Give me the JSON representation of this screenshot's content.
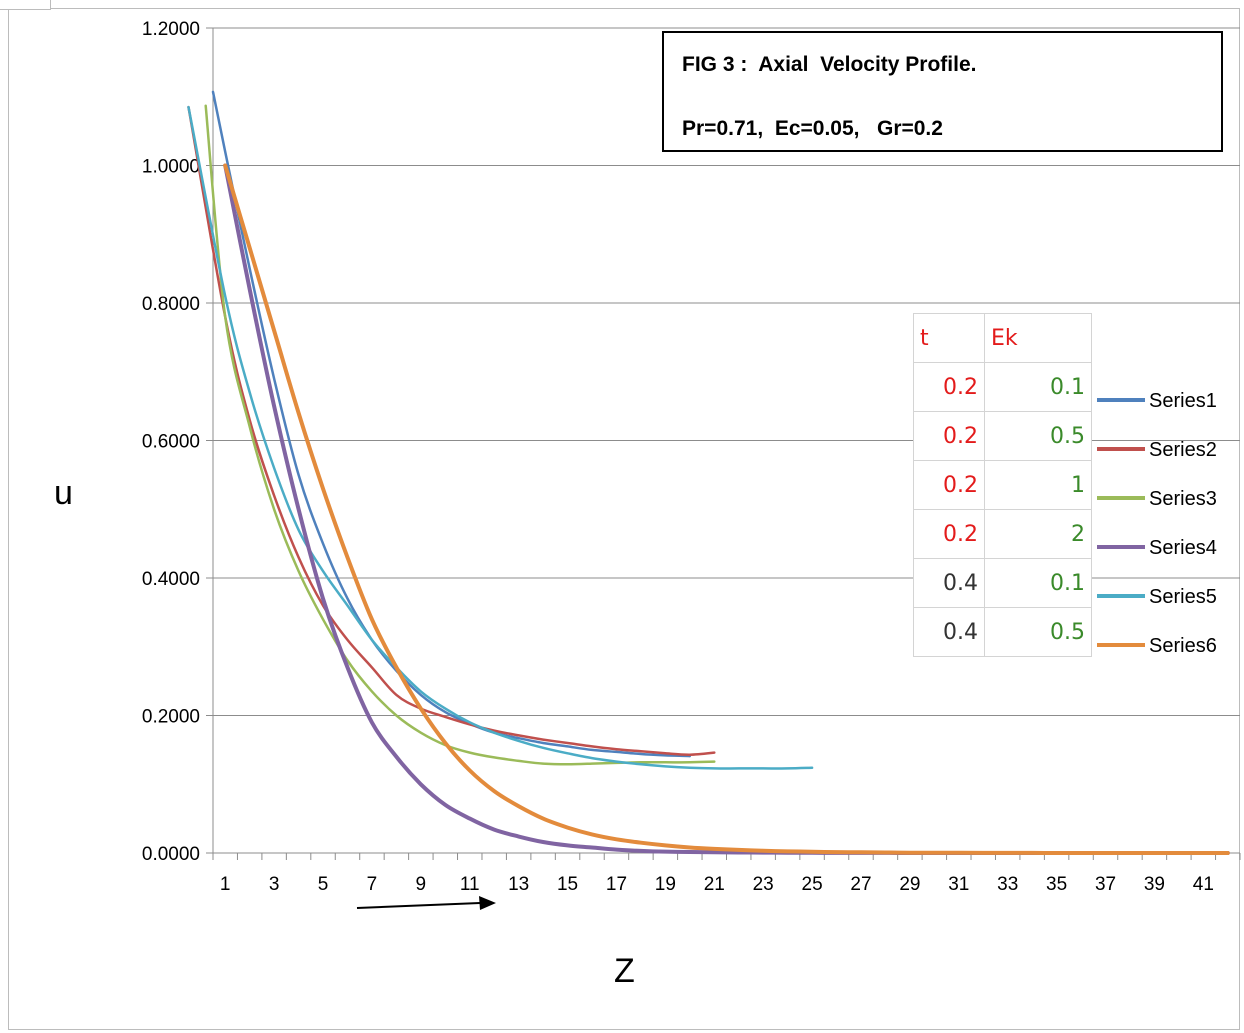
{
  "chart_data": {
    "type": "line",
    "title": "FIG 3 :  Axial  Velocity Profile.",
    "subtitle": "Pr=0.71,  Ec=0.05,   Gr=0.2",
    "xlabel": "Z",
    "ylabel": "u",
    "ylim": [
      0,
      1.2
    ],
    "y_ticks": [
      "0.0000",
      "0.2000",
      "0.4000",
      "0.6000",
      "0.8000",
      "1.0000",
      "1.2000"
    ],
    "x_ticks": [
      "1",
      "3",
      "5",
      "7",
      "9",
      "11",
      "13",
      "15",
      "17",
      "19",
      "21",
      "23",
      "25",
      "27",
      "29",
      "31",
      "33",
      "35",
      "37",
      "39",
      "41"
    ],
    "x_categories_count": 42,
    "grid": "horizontal",
    "legend_position": "right",
    "annotation": "arrow",
    "series": [
      {
        "name": "Series1",
        "color": "#4f81bd",
        "x": [
          0.5,
          1,
          2,
          3,
          4,
          5,
          6,
          7,
          8,
          9,
          10,
          11,
          12,
          13,
          14,
          15,
          16,
          17,
          18,
          19,
          20
        ],
        "values": [
          1.107,
          1.02,
          0.85,
          0.69,
          0.55,
          0.45,
          0.37,
          0.31,
          0.265,
          0.23,
          0.205,
          0.188,
          0.175,
          0.167,
          0.16,
          0.155,
          0.15,
          0.147,
          0.144,
          0.142,
          0.141
        ]
      },
      {
        "name": "Series2",
        "color": "#c0504d",
        "x": [
          -0.5,
          1,
          2,
          3,
          4,
          5,
          6,
          7,
          8,
          9,
          10,
          11,
          12,
          13,
          14,
          15,
          16,
          17,
          18,
          19,
          20,
          21
        ],
        "values": [
          1.085,
          0.78,
          0.63,
          0.52,
          0.43,
          0.36,
          0.31,
          0.27,
          0.23,
          0.21,
          0.198,
          0.187,
          0.178,
          0.171,
          0.165,
          0.16,
          0.155,
          0.151,
          0.148,
          0.145,
          0.143,
          0.146
        ]
      },
      {
        "name": "Series3",
        "color": "#9bbb59",
        "x": [
          0.2,
          1,
          2,
          3,
          4,
          5,
          6,
          7,
          8,
          9,
          10,
          11,
          12,
          13,
          14,
          15,
          16,
          17,
          18,
          19,
          20,
          21
        ],
        "values": [
          1.087,
          0.78,
          0.62,
          0.5,
          0.41,
          0.34,
          0.28,
          0.235,
          0.2,
          0.175,
          0.157,
          0.146,
          0.139,
          0.134,
          0.13,
          0.129,
          0.13,
          0.131,
          0.132,
          0.132,
          0.132,
          0.133
        ]
      },
      {
        "name": "Series4",
        "color": "#8064a2",
        "x": [
          1,
          2,
          3,
          4,
          5,
          6,
          7,
          8,
          9,
          10,
          11,
          12,
          13,
          14,
          15,
          16,
          17,
          18,
          19,
          20,
          21,
          22,
          23,
          24,
          25,
          26,
          27,
          28,
          29,
          30,
          31,
          32,
          33,
          34,
          35,
          36,
          37,
          38,
          39,
          40,
          41,
          42
        ],
        "values": [
          1.0,
          0.82,
          0.65,
          0.5,
          0.37,
          0.27,
          0.19,
          0.14,
          0.1,
          0.07,
          0.05,
          0.034,
          0.024,
          0.016,
          0.011,
          0.008,
          0.005,
          0.003,
          0.002,
          0.0015,
          0.001,
          0.0008,
          0.0006,
          0.0004,
          0.0003,
          0.0002,
          0.0001,
          0.0001,
          0,
          0,
          0,
          0,
          0,
          0,
          0,
          0,
          0,
          0,
          0,
          0,
          0,
          0
        ]
      },
      {
        "name": "Series5",
        "color": "#4bacc6",
        "x": [
          -0.5,
          1,
          2,
          3,
          4,
          5,
          6,
          7,
          8,
          9,
          10,
          11,
          12,
          13,
          14,
          15,
          16,
          17,
          18,
          19,
          20,
          21,
          22,
          23,
          24,
          25
        ],
        "values": [
          1.085,
          0.81,
          0.67,
          0.56,
          0.47,
          0.41,
          0.36,
          0.31,
          0.27,
          0.235,
          0.21,
          0.19,
          0.175,
          0.163,
          0.153,
          0.145,
          0.138,
          0.133,
          0.129,
          0.126,
          0.124,
          0.123,
          0.123,
          0.123,
          0.123,
          0.124
        ]
      },
      {
        "name": "Series6",
        "color": "#e38b3c",
        "x": [
          1,
          2,
          3,
          4,
          5,
          6,
          7,
          8,
          9,
          10,
          11,
          12,
          13,
          14,
          15,
          16,
          17,
          18,
          19,
          20,
          21,
          22,
          23,
          24,
          25,
          26,
          27,
          28,
          29,
          30,
          31,
          32,
          33,
          34,
          35,
          36,
          37,
          38,
          39,
          40,
          41,
          42
        ],
        "values": [
          1.0,
          0.88,
          0.76,
          0.64,
          0.53,
          0.43,
          0.34,
          0.27,
          0.21,
          0.16,
          0.12,
          0.09,
          0.068,
          0.05,
          0.037,
          0.027,
          0.02,
          0.015,
          0.011,
          0.008,
          0.006,
          0.0045,
          0.0033,
          0.0024,
          0.0018,
          0.0013,
          0.001,
          0.0007,
          0.0005,
          0.0004,
          0.0003,
          0.0002,
          0.0001,
          0.0001,
          0,
          0,
          0,
          0,
          0,
          0,
          0,
          0
        ]
      }
    ]
  },
  "param_table": {
    "headers": [
      "t",
      "Ek"
    ],
    "rows": [
      [
        "0.2",
        "0.1"
      ],
      [
        "0.2",
        "0.5"
      ],
      [
        "0.2",
        "1"
      ],
      [
        "0.2",
        "2"
      ],
      [
        "0.4",
        "0.1"
      ],
      [
        "0.4",
        "0.5"
      ]
    ],
    "header_color": "#e31b1b",
    "t_colors": [
      "#e31b1b",
      "#e31b1b",
      "#e31b1b",
      "#e31b1b",
      "#333333",
      "#333333"
    ],
    "ek_color": "#3a8a2a"
  }
}
